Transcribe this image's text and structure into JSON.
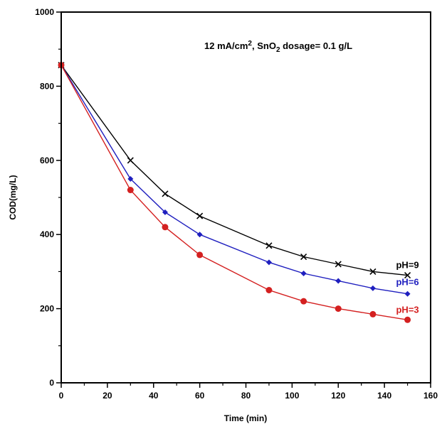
{
  "chart_data": {
    "type": "line",
    "title": "",
    "annotation": {
      "prefix": "12 mA/cm",
      "sup": "2",
      "mid1": ", SnO",
      "sub": "2",
      "mid2": " dosage= 0.1 g/L"
    },
    "xlabel": "Time (min)",
    "ylabel": "COD(mg/L)",
    "xlim": [
      0,
      160
    ],
    "ylim": [
      0,
      1000
    ],
    "xticks": [
      "0",
      "20",
      "40",
      "60",
      "80",
      "100",
      "120",
      "140",
      "160"
    ],
    "yticks": [
      "0",
      "200",
      "400",
      "600",
      "800",
      "1000"
    ],
    "grid": false,
    "legend": "inline labels at line ends (right)",
    "series": [
      {
        "name": "pH=9",
        "color": "#000000",
        "marker": "x",
        "x": [
          0,
          30,
          45,
          60,
          90,
          105,
          120,
          135,
          150
        ],
        "y": [
          857,
          600,
          510,
          450,
          370,
          340,
          320,
          300,
          290
        ]
      },
      {
        "name": "pH=6",
        "color": "#1f1fbf",
        "marker": "diamond",
        "x": [
          0,
          30,
          45,
          60,
          90,
          105,
          120,
          135,
          150
        ],
        "y": [
          857,
          550,
          460,
          400,
          325,
          295,
          275,
          255,
          240
        ]
      },
      {
        "name": "pH=3",
        "color": "#d42020",
        "marker": "circle",
        "x": [
          0,
          30,
          45,
          60,
          90,
          105,
          120,
          135,
          150
        ],
        "y": [
          857,
          520,
          420,
          345,
          250,
          220,
          200,
          185,
          170
        ]
      }
    ]
  }
}
